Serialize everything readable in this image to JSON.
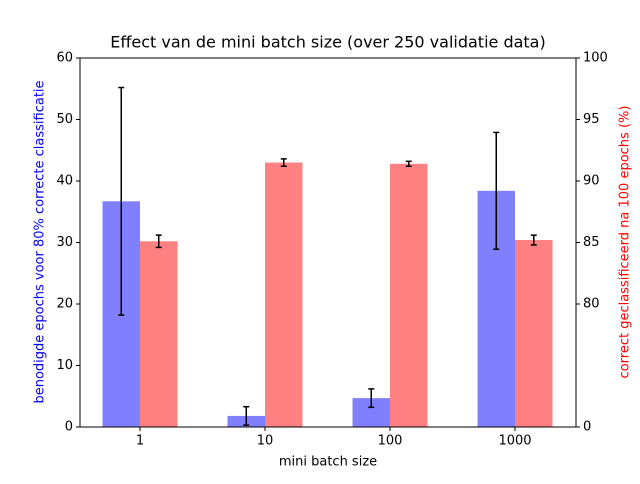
{
  "chart_data": {
    "type": "bar",
    "title": "Effect van de mini batch size (over 250 validatie data)",
    "x_label": "mini batch size",
    "y_label": "benodigde epochs voor 80% correcte classificatie",
    "y2_label": "correct geclassificeerd na 100 epochs (%)",
    "categories": [
      "1",
      "10",
      "100",
      "1000"
    ],
    "series": [
      {
        "name": "epochs",
        "color": "#8080ff",
        "values": [
          36.7,
          1.8,
          4.7,
          38.4
        ],
        "errors": [
          18.5,
          1.5,
          1.5,
          9.5
        ]
      },
      {
        "name": "correct",
        "color": "#ff8080",
        "axis": "y2",
        "values": [
          85.1,
          91.5,
          91.4,
          85.2
        ],
        "errors": [
          0.5,
          0.3,
          0.2,
          0.4
        ]
      }
    ],
    "ylim": [
      0,
      60
    ],
    "yticks": [
      0,
      10,
      20,
      30,
      40,
      50,
      60
    ],
    "y2lim": [
      70,
      100
    ],
    "y2ticks": [
      {
        "value": 70,
        "label": "0"
      },
      80,
      85,
      90,
      95,
      100
    ],
    "y_label_color": "#0000ff",
    "y2_label_color": "#ff0000"
  }
}
